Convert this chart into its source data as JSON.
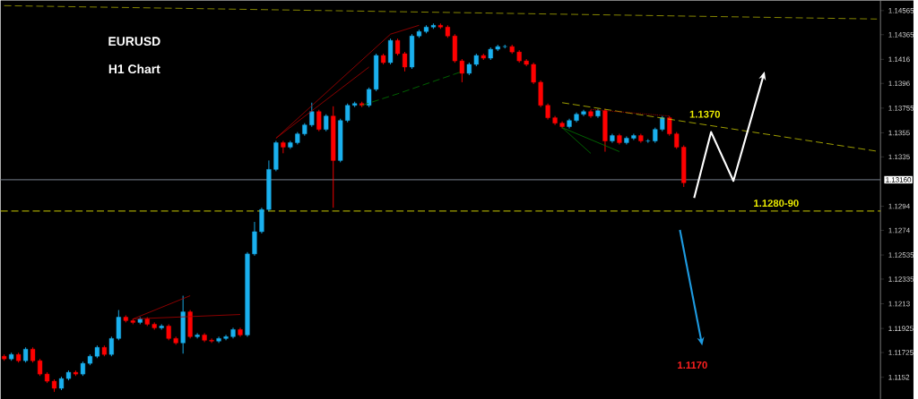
{
  "chart_data": {
    "type": "candlestick",
    "title": "EURUSD",
    "subtitle": "H1 Chart",
    "categories": [
      null,
      null,
      null,
      null,
      null,
      null,
      null,
      null,
      null,
      null,
      null,
      null,
      null,
      null,
      null,
      null,
      null,
      null,
      null,
      null,
      null,
      null,
      null,
      null,
      null,
      null,
      null,
      null,
      null,
      null,
      null,
      null,
      null,
      null,
      null,
      null,
      null,
      null,
      null,
      null,
      null,
      null,
      null,
      null,
      null,
      null,
      null,
      null,
      null,
      null,
      null,
      null,
      null,
      null,
      null,
      null,
      null,
      null,
      null,
      null,
      null,
      null,
      null,
      null,
      null,
      null,
      null,
      null,
      null,
      null,
      null,
      null,
      null,
      null,
      null,
      null,
      null,
      null,
      null,
      null,
      null,
      null,
      null,
      null,
      null,
      null,
      null,
      null,
      null,
      null,
      null,
      null,
      null,
      null,
      null,
      null,
      null,
      null,
      null,
      null,
      null,
      null,
      null,
      null,
      null,
      null,
      null,
      null,
      null,
      null,
      null,
      null,
      null,
      null,
      null,
      null,
      null,
      null,
      null,
      null,
      null,
      null,
      null
    ],
    "ohlc": [
      [
        1.11694,
        1.11709,
        1.11657,
        1.11672
      ],
      [
        1.11672,
        1.11724,
        1.11657,
        1.11709
      ],
      [
        1.11709,
        1.11724,
        1.11642,
        1.11657
      ],
      [
        1.11657,
        1.11768,
        1.11642,
        1.11753
      ],
      [
        1.11753,
        1.11768,
        1.11642,
        1.11657
      ],
      [
        1.11657,
        1.11672,
        1.11531,
        1.11546
      ],
      [
        1.11546,
        1.11561,
        1.11472,
        1.11487
      ],
      [
        1.11487,
        1.11502,
        1.11398,
        1.11428
      ],
      [
        1.11428,
        1.11524,
        1.11413,
        1.11509
      ],
      [
        1.11509,
        1.11576,
        1.11494,
        1.11561
      ],
      [
        1.11561,
        1.11576,
        1.11531,
        1.11546
      ],
      [
        1.11546,
        1.1165,
        1.11531,
        1.11635
      ],
      [
        1.11635,
        1.11709,
        1.1162,
        1.11694
      ],
      [
        1.11694,
        1.11783,
        1.11679,
        1.11768
      ],
      [
        1.11768,
        1.11783,
        1.11694,
        1.11709
      ],
      [
        1.11709,
        1.11857,
        1.11694,
        1.11842
      ],
      [
        1.11842,
        1.12078,
        1.11827,
        1.12019
      ],
      [
        1.12019,
        1.12034,
        1.11975,
        1.1199
      ],
      [
        1.1199,
        1.12005,
        1.1196,
        1.11975
      ],
      [
        1.11975,
        1.12019,
        1.1196,
        1.12004
      ],
      [
        1.12004,
        1.12019,
        1.11945,
        1.1196
      ],
      [
        1.1196,
        1.11975,
        1.11915,
        1.1193
      ],
      [
        1.1193,
        1.1196,
        1.11915,
        1.11945
      ],
      [
        1.11945,
        1.1196,
        1.11827,
        1.11842
      ],
      [
        1.11842,
        1.11857,
        1.1179,
        1.11805
      ],
      [
        1.11805,
        1.12197,
        1.11716,
        1.12063
      ],
      [
        1.12063,
        1.12078,
        1.11842,
        1.11857
      ],
      [
        1.11857,
        1.11886,
        1.11842,
        1.11871
      ],
      [
        1.11871,
        1.11886,
        1.11812,
        1.11827
      ],
      [
        1.11827,
        1.11842,
        1.11805,
        1.1182
      ],
      [
        1.1182,
        1.11857,
        1.11805,
        1.11842
      ],
      [
        1.11842,
        1.11872,
        1.11827,
        1.11857
      ],
      [
        1.11857,
        1.11931,
        1.11842,
        1.11916
      ],
      [
        1.11916,
        1.11931,
        1.11856,
        1.11871
      ],
      [
        1.11871,
        1.12559,
        1.11856,
        1.12544
      ],
      [
        1.12544,
        1.1281,
        1.12529,
        1.12729
      ],
      [
        1.12729,
        1.12928,
        1.12714,
        1.12913
      ],
      [
        1.12913,
        1.1332,
        1.12898,
        1.13246
      ],
      [
        1.13246,
        1.13483,
        1.13231,
        1.13468
      ],
      [
        1.13468,
        1.13483,
        1.1338,
        1.13431
      ],
      [
        1.13431,
        1.13483,
        1.13416,
        1.13468
      ],
      [
        1.13468,
        1.13556,
        1.13453,
        1.13541
      ],
      [
        1.13541,
        1.1363,
        1.13526,
        1.13615
      ],
      [
        1.13615,
        1.138,
        1.136,
        1.13726
      ],
      [
        1.13726,
        1.13741,
        1.13563,
        1.13578
      ],
      [
        1.13578,
        1.13704,
        1.13563,
        1.13689
      ],
      [
        1.13689,
        1.1377,
        1.12928,
        1.1332
      ],
      [
        1.1332,
        1.13667,
        1.13305,
        1.13652
      ],
      [
        1.13652,
        1.13793,
        1.13637,
        1.13778
      ],
      [
        1.13778,
        1.13808,
        1.13763,
        1.13793
      ],
      [
        1.13793,
        1.13808,
        1.13763,
        1.13778
      ],
      [
        1.13778,
        1.13926,
        1.13763,
        1.13911
      ],
      [
        1.13911,
        1.14207,
        1.13896,
        1.14192
      ],
      [
        1.14192,
        1.14207,
        1.14118,
        1.14133
      ],
      [
        1.14133,
        1.14332,
        1.14118,
        1.14317
      ],
      [
        1.14317,
        1.14332,
        1.14192,
        1.14207
      ],
      [
        1.14207,
        1.14222,
        1.1406,
        1.14096
      ],
      [
        1.14096,
        1.14369,
        1.14081,
        1.14354
      ],
      [
        1.14354,
        1.14406,
        1.14339,
        1.14391
      ],
      [
        1.14391,
        1.14443,
        1.14376,
        1.14428
      ],
      [
        1.14428,
        1.14458,
        1.14413,
        1.14443
      ],
      [
        1.14443,
        1.14458,
        1.14413,
        1.14428
      ],
      [
        1.14428,
        1.14443,
        1.14339,
        1.14354
      ],
      [
        1.14354,
        1.14369,
        1.14132,
        1.14147
      ],
      [
        1.14147,
        1.14162,
        1.1397,
        1.14044
      ],
      [
        1.14044,
        1.14133,
        1.14029,
        1.14118
      ],
      [
        1.14118,
        1.14207,
        1.14103,
        1.14192
      ],
      [
        1.14192,
        1.14207,
        1.14155,
        1.1417
      ],
      [
        1.1417,
        1.14259,
        1.14155,
        1.14244
      ],
      [
        1.14244,
        1.14281,
        1.14229,
        1.14266
      ],
      [
        1.14266,
        1.14281,
        1.14251,
        1.14266
      ],
      [
        1.14266,
        1.14281,
        1.14206,
        1.14221
      ],
      [
        1.14221,
        1.14236,
        1.14132,
        1.14147
      ],
      [
        1.14147,
        1.14162,
        1.14103,
        1.14118
      ],
      [
        1.14118,
        1.14133,
        1.13955,
        1.1397
      ],
      [
        1.1397,
        1.13985,
        1.13763,
        1.13778
      ],
      [
        1.13778,
        1.13793,
        1.1366,
        1.13675
      ],
      [
        1.13675,
        1.1369,
        1.13615,
        1.1363
      ],
      [
        1.1363,
        1.13645,
        1.13586,
        1.13601
      ],
      [
        1.13601,
        1.13667,
        1.13586,
        1.13652
      ],
      [
        1.13652,
        1.13719,
        1.13637,
        1.13704
      ],
      [
        1.13704,
        1.13741,
        1.13689,
        1.13726
      ],
      [
        1.13726,
        1.13741,
        1.13674,
        1.13689
      ],
      [
        1.13689,
        1.13749,
        1.13674,
        1.13734
      ],
      [
        1.13734,
        1.13749,
        1.13393,
        1.13482
      ],
      [
        1.13482,
        1.13542,
        1.13467,
        1.13527
      ],
      [
        1.13527,
        1.13542,
        1.13453,
        1.13468
      ],
      [
        1.13468,
        1.1352,
        1.13453,
        1.13505
      ],
      [
        1.13505,
        1.13542,
        1.1349,
        1.13527
      ],
      [
        1.13527,
        1.13542,
        1.13467,
        1.13482
      ],
      [
        1.13482,
        1.13497,
        1.13467,
        1.13482
      ],
      [
        1.13482,
        1.13593,
        1.13467,
        1.13578
      ],
      [
        1.13578,
        1.1369,
        1.13563,
        1.13675
      ],
      [
        1.13675,
        1.1369,
        1.13526,
        1.13541
      ],
      [
        1.13541,
        1.13556,
        1.13416,
        1.13431
      ],
      [
        1.13431,
        1.13446,
        1.131,
        1.13135
      ],
      null,
      null,
      null,
      null,
      null,
      null,
      null,
      null,
      null,
      null,
      null,
      null,
      null,
      null,
      null,
      null,
      null,
      null,
      null,
      null,
      null,
      null,
      null,
      null,
      null,
      null,
      null
    ],
    "colors": [
      "#ff0000",
      "#1ab0ee",
      "#ff0000",
      "#1ab0ee",
      "#ff0000",
      "#ff0000",
      "#ff0000",
      "#ff0000",
      "#1ab0ee",
      "#1ab0ee",
      "#ff0000",
      "#1ab0ee",
      "#1ab0ee",
      "#1ab0ee",
      "#ff0000",
      "#1ab0ee",
      "#1ab0ee",
      "#ff0000",
      "#ff0000",
      "#1ab0ee",
      "#ff0000",
      "#ff0000",
      "#1ab0ee",
      "#ff0000",
      "#ff0000",
      "#1ab0ee",
      "#ff0000",
      "#1ab0ee",
      "#ff0000",
      "#ff0000",
      "#1ab0ee",
      "#1ab0ee",
      "#1ab0ee",
      "#ff0000",
      "#1ab0ee",
      "#1ab0ee",
      "#1ab0ee",
      "#1ab0ee",
      "#1ab0ee",
      "#ff0000",
      "#1ab0ee",
      "#1ab0ee",
      "#1ab0ee",
      "#1ab0ee",
      "#ff0000",
      "#1ab0ee",
      "#ff0000",
      "#1ab0ee",
      "#1ab0ee",
      "#1ab0ee",
      "#ff0000",
      "#1ab0ee",
      "#1ab0ee",
      "#ff0000",
      "#1ab0ee",
      "#ff0000",
      "#ff0000",
      "#1ab0ee",
      "#1ab0ee",
      "#1ab0ee",
      "#1ab0ee",
      "#ff0000",
      "#ff0000",
      "#ff0000",
      "#ff0000",
      "#1ab0ee",
      "#1ab0ee",
      "#ff0000",
      "#1ab0ee",
      "#1ab0ee",
      "#1ab0ee",
      "#ff0000",
      "#ff0000",
      "#ff0000",
      "#ff0000",
      "#ff0000",
      "#ff0000",
      "#ff0000",
      "#ff0000",
      "#1ab0ee",
      "#1ab0ee",
      "#1ab0ee",
      "#ff0000",
      "#1ab0ee",
      "#ff0000",
      "#1ab0ee",
      "#ff0000",
      "#1ab0ee",
      "#1ab0ee",
      "#ff0000",
      "#1ab0ee",
      "#1ab0ee",
      "#1ab0ee",
      "#ff0000",
      "#ff0000",
      "#ff0000",
      null,
      null,
      null,
      null,
      null,
      null,
      null,
      null,
      null,
      null,
      null,
      null,
      null,
      null,
      null,
      null,
      null,
      null,
      null,
      null,
      null,
      null,
      null,
      null,
      null,
      null,
      null
    ],
    "ylim": [
      1.1134,
      1.1465
    ],
    "yticks": [
      1.14565,
      1.14365,
      1.1416,
      1.1396,
      1.13755,
      1.1355,
      1.1335,
      1.1294,
      1.1274,
      1.12535,
      1.12335,
      1.1213,
      1.11925,
      1.11725,
      1.1152
    ],
    "tick_labels": "y",
    "series": [
      {
        "type": "line",
        "color": "#a8a800",
        "line_style": "dashed",
        "values": [
          1.14606,
          null,
          null,
          null,
          null,
          null,
          null,
          null,
          null,
          null,
          null,
          null,
          null,
          null,
          null,
          null,
          null,
          null,
          null,
          null,
          null,
          null,
          null,
          null,
          null,
          null,
          null,
          null,
          null,
          null,
          null,
          null,
          null,
          null,
          null,
          null,
          null,
          null,
          null,
          null,
          null,
          null,
          null,
          null,
          null,
          null,
          null,
          null,
          null,
          null,
          null,
          null,
          null,
          null,
          null,
          null,
          null,
          null,
          null,
          null,
          null,
          null,
          null,
          null,
          null,
          null,
          null,
          null,
          null,
          null,
          null,
          null,
          null,
          null,
          null,
          null,
          null,
          null,
          null,
          null,
          null,
          null,
          null,
          null,
          null,
          null,
          null,
          null,
          null,
          null,
          null,
          null,
          null,
          null,
          null,
          null,
          null,
          null,
          null,
          null,
          null,
          null,
          null,
          null,
          null,
          null,
          null,
          null,
          null,
          null,
          null,
          null,
          null,
          null,
          null,
          null,
          null,
          null,
          null,
          null,
          null,
          null,
          1.14495
        ]
      },
      {
        "type": "line",
        "color": "#c8c800",
        "line_style": "dashed",
        "values": [
          null,
          null,
          null,
          null,
          null,
          null,
          null,
          null,
          null,
          null,
          null,
          null,
          null,
          null,
          null,
          null,
          null,
          null,
          null,
          null,
          null,
          null,
          null,
          null,
          null,
          null,
          null,
          null,
          null,
          null,
          null,
          null,
          null,
          null,
          null,
          null,
          null,
          null,
          null,
          null,
          null,
          null,
          null,
          null,
          null,
          null,
          null,
          null,
          null,
          null,
          null,
          null,
          null,
          null,
          null,
          null,
          null,
          null,
          null,
          null,
          null,
          null,
          null,
          null,
          null,
          null,
          null,
          null,
          null,
          null,
          null,
          null,
          null,
          null,
          null,
          null,
          null,
          null,
          1.138,
          null,
          null,
          null,
          null,
          null,
          null,
          null,
          null,
          null,
          null,
          null,
          null,
          null,
          null,
          null,
          null,
          null,
          null,
          null,
          null,
          null,
          null,
          null,
          null,
          null,
          null,
          null,
          null,
          null,
          null,
          null,
          null,
          null,
          null,
          null,
          null,
          null,
          null,
          null,
          null,
          null,
          null,
          null,
          1.13397
        ]
      },
      {
        "type": "line",
        "color": "#b00000",
        "line_style": "solid",
        "values": [
          null,
          null,
          null,
          null,
          null,
          null,
          null,
          null,
          null,
          null,
          null,
          null,
          null,
          null,
          null,
          null,
          null,
          null,
          1.12004,
          null,
          null,
          null,
          null,
          null,
          null,
          null,
          1.12197,
          null,
          null,
          null,
          null,
          null,
          null,
          null,
          null,
          null,
          null,
          null,
          null,
          null,
          null,
          null,
          null,
          null,
          null,
          null,
          null,
          null,
          null,
          null,
          null,
          null,
          null,
          null,
          null,
          null,
          null,
          null,
          null,
          null,
          null,
          null,
          null,
          null,
          null,
          null,
          null,
          null,
          null,
          null,
          null,
          null,
          null,
          null,
          null,
          null,
          null,
          null,
          null,
          null,
          null,
          null,
          null,
          null,
          null,
          null,
          null,
          null,
          null,
          null,
          null,
          null,
          null,
          null,
          null,
          null,
          null,
          null,
          null,
          null,
          null,
          null,
          null,
          null,
          null,
          null,
          null,
          null,
          null,
          null,
          null,
          null,
          null,
          null,
          null,
          null,
          null,
          null,
          null,
          null,
          null,
          null,
          null
        ]
      },
      {
        "type": "line",
        "color": "#b00000",
        "line_style": "solid",
        "values": [
          null,
          null,
          null,
          null,
          null,
          null,
          null,
          null,
          null,
          null,
          null,
          null,
          null,
          null,
          null,
          null,
          null,
          null,
          1.12004,
          null,
          null,
          null,
          null,
          null,
          null,
          null,
          null,
          null,
          null,
          null,
          null,
          null,
          null,
          1.12041,
          null,
          null,
          null,
          null,
          null,
          null,
          null,
          null,
          null,
          null,
          null,
          null,
          null,
          null,
          null,
          null,
          null,
          null,
          null,
          null,
          null,
          null,
          null,
          null,
          null,
          null,
          null,
          null,
          null,
          null,
          null,
          null,
          null,
          null,
          null,
          null,
          null,
          null,
          null,
          null,
          null,
          null,
          null,
          null,
          null,
          null,
          null,
          null,
          null,
          null,
          null,
          null,
          null,
          null,
          null,
          null,
          null,
          null,
          null,
          null,
          null,
          null,
          null,
          null,
          null,
          null,
          null,
          null,
          null,
          null,
          null,
          null,
          null,
          null,
          null,
          null,
          null,
          null,
          null,
          null,
          null,
          null,
          null,
          null,
          null,
          null,
          null,
          null,
          null
        ]
      },
      {
        "type": "line",
        "color": "#b00000",
        "line_style": "solid",
        "values": [
          null,
          null,
          null,
          null,
          null,
          null,
          null,
          null,
          null,
          null,
          null,
          null,
          null,
          null,
          null,
          null,
          null,
          null,
          null,
          null,
          null,
          null,
          null,
          null,
          null,
          null,
          null,
          null,
          null,
          null,
          null,
          null,
          null,
          null,
          null,
          null,
          null,
          null,
          1.13505,
          null,
          null,
          null,
          null,
          null,
          null,
          null,
          null,
          null,
          null,
          null,
          null,
          null,
          null,
          null,
          1.14369,
          null,
          null,
          null,
          1.14443,
          null,
          null,
          null,
          null,
          null,
          null,
          null,
          null,
          null,
          null,
          null,
          null,
          null,
          null,
          null,
          null,
          null,
          null,
          null,
          null,
          null,
          null,
          null,
          null,
          null,
          null,
          null,
          null,
          null,
          null,
          null,
          null,
          null,
          null,
          null,
          null,
          null,
          null,
          null,
          null,
          null,
          null,
          null,
          null,
          null,
          null,
          null,
          null,
          null,
          null,
          null,
          null,
          null,
          null,
          null,
          null,
          null,
          null,
          null,
          null,
          null,
          null,
          null,
          null
        ]
      },
      {
        "type": "line",
        "color": "#b00000",
        "line_style": "solid",
        "values": [
          null,
          null,
          null,
          null,
          null,
          null,
          null,
          null,
          null,
          null,
          null,
          null,
          null,
          null,
          null,
          null,
          null,
          null,
          null,
          null,
          null,
          null,
          null,
          null,
          null,
          null,
          null,
          null,
          null,
          null,
          null,
          null,
          null,
          null,
          null,
          null,
          null,
          null,
          1.13505,
          null,
          null,
          null,
          null,
          null,
          null,
          null,
          null,
          null,
          null,
          null,
          null,
          1.14096,
          null,
          null,
          null,
          null,
          null,
          null,
          null,
          null,
          null,
          null,
          null,
          null,
          null,
          null,
          null,
          null,
          null,
          null,
          null,
          null,
          null,
          null,
          null,
          null,
          null,
          null,
          null,
          null,
          null,
          null,
          null,
          null,
          null,
          null,
          null,
          null,
          null,
          null,
          null,
          null,
          null,
          null,
          null,
          null,
          null,
          null,
          null,
          null,
          null,
          null,
          null,
          null,
          null,
          null,
          null,
          null,
          null,
          null,
          null,
          null,
          null,
          null,
          null,
          null,
          null,
          null,
          null,
          null,
          null,
          null,
          null
        ]
      },
      {
        "type": "line",
        "color": "#007a00",
        "line_style": "dashed",
        "values": [
          null,
          null,
          null,
          null,
          null,
          null,
          null,
          null,
          null,
          null,
          null,
          null,
          null,
          null,
          null,
          null,
          null,
          null,
          null,
          null,
          null,
          null,
          null,
          null,
          null,
          null,
          null,
          null,
          null,
          null,
          null,
          null,
          null,
          null,
          null,
          null,
          null,
          null,
          null,
          null,
          null,
          null,
          null,
          null,
          null,
          null,
          null,
          null,
          null,
          null,
          1.13778,
          null,
          null,
          null,
          null,
          1.13874,
          null,
          null,
          null,
          null,
          null,
          null,
          null,
          null,
          1.14059,
          null,
          null,
          null,
          null,
          null,
          null,
          null,
          null,
          null,
          null,
          null,
          null,
          null,
          null,
          null,
          null,
          null,
          null,
          null,
          null,
          null,
          null,
          null,
          null,
          null,
          null,
          null,
          null,
          null,
          null,
          null,
          null,
          null,
          null,
          null,
          null,
          null,
          null,
          null,
          null,
          null,
          null,
          null,
          null,
          null,
          null,
          null,
          null,
          null,
          null,
          null,
          null,
          null,
          null,
          null,
          null,
          null,
          null
        ]
      },
      {
        "type": "line",
        "color": "#007a00",
        "line_style": "solid",
        "values": [
          null,
          null,
          null,
          null,
          null,
          null,
          null,
          null,
          null,
          null,
          null,
          null,
          null,
          null,
          null,
          null,
          null,
          null,
          null,
          null,
          null,
          null,
          null,
          null,
          null,
          null,
          null,
          null,
          null,
          null,
          null,
          null,
          null,
          null,
          null,
          null,
          null,
          null,
          null,
          null,
          null,
          null,
          null,
          null,
          null,
          null,
          null,
          null,
          null,
          null,
          null,
          null,
          null,
          null,
          null,
          null,
          null,
          null,
          null,
          null,
          null,
          null,
          null,
          null,
          null,
          null,
          null,
          null,
          null,
          null,
          null,
          null,
          null,
          null,
          null,
          null,
          null,
          null,
          1.13593,
          null,
          null,
          null,
          1.13379,
          null,
          null,
          null,
          null,
          null,
          null,
          null,
          null,
          null,
          null,
          null,
          null,
          null,
          null,
          null,
          null,
          null,
          null,
          null,
          null,
          null,
          null,
          null,
          null,
          null,
          null,
          null,
          null,
          null,
          null,
          null,
          null,
          null,
          null,
          null,
          null,
          null,
          null,
          null,
          null
        ]
      },
      {
        "type": "line",
        "color": "#007a00",
        "line_style": "solid",
        "values": [
          null,
          null,
          null,
          null,
          null,
          null,
          null,
          null,
          null,
          null,
          null,
          null,
          null,
          null,
          null,
          null,
          null,
          null,
          null,
          null,
          null,
          null,
          null,
          null,
          null,
          null,
          null,
          null,
          null,
          null,
          null,
          null,
          null,
          null,
          null,
          null,
          null,
          null,
          null,
          null,
          null,
          null,
          null,
          null,
          null,
          null,
          null,
          null,
          null,
          null,
          null,
          null,
          null,
          null,
          null,
          null,
          null,
          null,
          null,
          null,
          null,
          null,
          null,
          null,
          null,
          null,
          null,
          null,
          null,
          null,
          null,
          null,
          null,
          null,
          null,
          null,
          null,
          null,
          1.13593,
          null,
          null,
          null,
          null,
          null,
          null,
          null,
          1.13394,
          null,
          null,
          null,
          null,
          null,
          null,
          null,
          null,
          null,
          null,
          null,
          null,
          null,
          null,
          null,
          null,
          null,
          null,
          null,
          null,
          null,
          null,
          null,
          null,
          null,
          null,
          null,
          null,
          null,
          null,
          null,
          null,
          null,
          null,
          null,
          null
        ]
      },
      {
        "type": "line",
        "color": "#b00000",
        "line_style": "dotted",
        "values": [
          null,
          null,
          null,
          null,
          null,
          null,
          null,
          null,
          null,
          null,
          null,
          null,
          null,
          null,
          null,
          null,
          null,
          null,
          null,
          null,
          null,
          null,
          null,
          null,
          null,
          null,
          null,
          null,
          null,
          null,
          null,
          null,
          null,
          null,
          null,
          null,
          null,
          null,
          null,
          null,
          null,
          null,
          null,
          null,
          null,
          null,
          null,
          null,
          null,
          null,
          null,
          null,
          null,
          null,
          null,
          null,
          null,
          null,
          null,
          null,
          null,
          null,
          null,
          null,
          null,
          null,
          null,
          null,
          null,
          null,
          null,
          null,
          null,
          null,
          null,
          null,
          null,
          null,
          null,
          null,
          null,
          null,
          1.13745,
          null,
          null,
          null,
          null,
          null,
          null,
          null,
          null,
          null,
          null,
          1.13689,
          null,
          null,
          null,
          null,
          null,
          null,
          null,
          null,
          null,
          null,
          null,
          null,
          null,
          null,
          null,
          null,
          null,
          null,
          null,
          null,
          null,
          null,
          null,
          null,
          null,
          null,
          null,
          null,
          null
        ]
      }
    ],
    "ref_lines": [
      {
        "axis": "y",
        "value": 1.1316,
        "label": "1.13160",
        "color": "#5f6670",
        "line_style": "solid"
      },
      {
        "axis": "y",
        "value": 1.129,
        "color": "#a0a000",
        "line_style": "dashed"
      }
    ],
    "annotations": [
      "1.1370",
      "1.1280-90",
      "1.1170"
    ]
  }
}
